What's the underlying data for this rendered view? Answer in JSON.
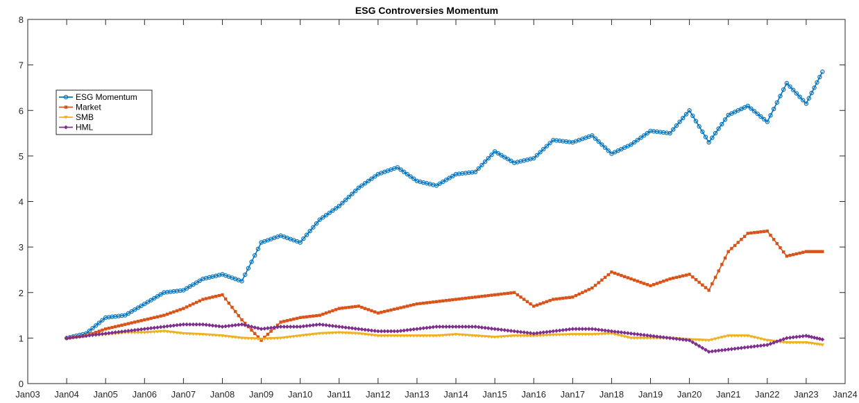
{
  "chart_data": {
    "type": "line",
    "title": "ESG Controversies Momentum",
    "xlabel": "",
    "ylabel": "",
    "xlim": [
      "Jan03",
      "Jan24"
    ],
    "ylim": [
      0,
      8
    ],
    "x_ticks": [
      "Jan03",
      "Jan04",
      "Jan05",
      "Jan06",
      "Jan07",
      "Jan08",
      "Jan09",
      "Jan10",
      "Jan11",
      "Jan12",
      "Jan13",
      "Jan14",
      "Jan15",
      "Jan16",
      "Jan17",
      "Jan18",
      "Jan19",
      "Jan20",
      "Jan21",
      "Jan22",
      "Jan23",
      "Jan24"
    ],
    "y_ticks": [
      0,
      1,
      2,
      3,
      4,
      5,
      6,
      7,
      8
    ],
    "grid": false,
    "legend_position": "upper-left",
    "x": [
      "Jan04",
      "Jul04",
      "Jan05",
      "Jul05",
      "Jan06",
      "Jul06",
      "Jan07",
      "Jul07",
      "Jan08",
      "Jul08",
      "Jan09",
      "Jul09",
      "Jan10",
      "Jul10",
      "Jan11",
      "Jul11",
      "Jan12",
      "Jul12",
      "Jan13",
      "Jul13",
      "Jan14",
      "Jul14",
      "Jan15",
      "Jul15",
      "Jan16",
      "Jul16",
      "Jan17",
      "Jul17",
      "Jan18",
      "Jul18",
      "Jan19",
      "Jul19",
      "Jan20",
      "Jul20",
      "Jan21",
      "Jul21",
      "Jan22",
      "Jul22",
      "Jan23",
      "Jun23"
    ],
    "series": [
      {
        "name": "ESG Momentum",
        "color": "#0072BD",
        "marker": "o",
        "values": [
          1.0,
          1.1,
          1.45,
          1.5,
          1.75,
          2.0,
          2.05,
          2.3,
          2.4,
          2.25,
          3.1,
          3.25,
          3.1,
          3.6,
          3.9,
          4.3,
          4.6,
          4.75,
          4.45,
          4.35,
          4.6,
          4.65,
          5.1,
          4.85,
          4.95,
          5.35,
          5.3,
          5.45,
          5.05,
          5.25,
          5.55,
          5.5,
          6.0,
          5.3,
          5.9,
          6.1,
          5.75,
          6.6,
          6.15,
          6.85
        ]
      },
      {
        "name": "Market",
        "color": "#D95319",
        "marker": "s",
        "values": [
          1.0,
          1.05,
          1.2,
          1.3,
          1.4,
          1.5,
          1.65,
          1.85,
          1.95,
          1.4,
          0.95,
          1.35,
          1.45,
          1.5,
          1.65,
          1.7,
          1.55,
          1.65,
          1.75,
          1.8,
          1.85,
          1.9,
          1.95,
          2.0,
          1.7,
          1.85,
          1.9,
          2.1,
          2.45,
          2.3,
          2.15,
          2.3,
          2.4,
          2.05,
          2.9,
          3.3,
          3.35,
          2.8,
          2.9,
          2.9
        ]
      },
      {
        "name": "SMB",
        "color": "#EDB120",
        "marker": "v",
        "values": [
          1.0,
          1.05,
          1.08,
          1.12,
          1.12,
          1.15,
          1.1,
          1.08,
          1.05,
          1.0,
          0.98,
          1.0,
          1.05,
          1.1,
          1.12,
          1.1,
          1.05,
          1.05,
          1.05,
          1.05,
          1.08,
          1.05,
          1.02,
          1.05,
          1.05,
          1.07,
          1.08,
          1.08,
          1.1,
          1.0,
          1.0,
          1.0,
          0.97,
          0.95,
          1.05,
          1.05,
          0.95,
          0.9,
          0.9,
          0.85
        ]
      },
      {
        "name": "HML",
        "color": "#7E2F8E",
        "marker": "d",
        "values": [
          1.0,
          1.05,
          1.1,
          1.15,
          1.2,
          1.25,
          1.3,
          1.3,
          1.25,
          1.3,
          1.2,
          1.25,
          1.25,
          1.3,
          1.25,
          1.2,
          1.15,
          1.15,
          1.2,
          1.25,
          1.25,
          1.25,
          1.2,
          1.15,
          1.1,
          1.15,
          1.2,
          1.2,
          1.15,
          1.1,
          1.05,
          1.0,
          0.95,
          0.7,
          0.75,
          0.8,
          0.85,
          1.0,
          1.05,
          0.97
        ]
      }
    ]
  }
}
